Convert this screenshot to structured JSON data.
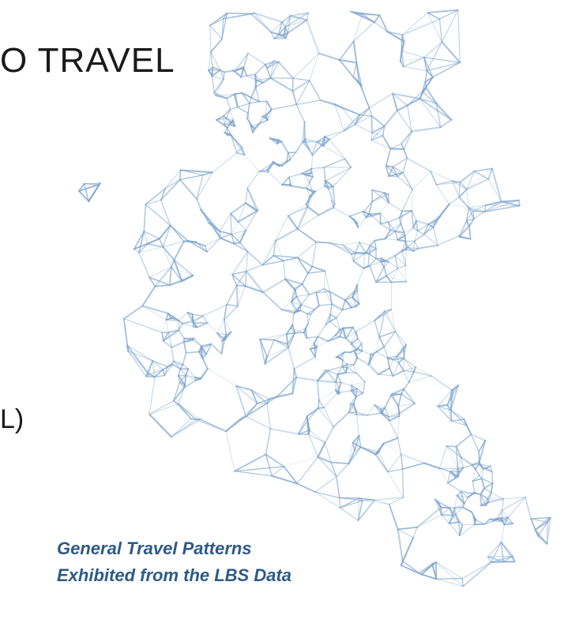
{
  "heading": "O TRAVEL",
  "side_text": "L)",
  "caption": {
    "line1": "General Travel Patterns",
    "line2": "Exhibited from the LBS Data"
  }
}
